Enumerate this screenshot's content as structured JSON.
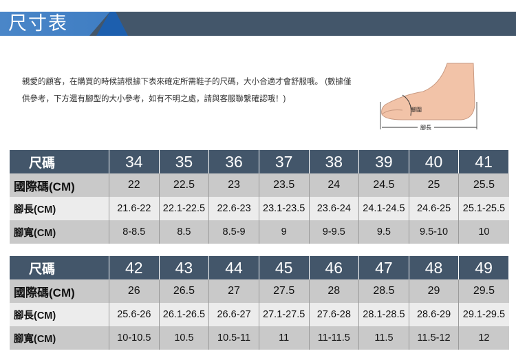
{
  "header": {
    "title": "尺寸表"
  },
  "intro": "親愛的顧客，在購買的時候請根據下表來確定所需鞋子的尺碼，大小合適才會舒服哦。 (數據僅供參考，下方還有腳型的大小參考，如有不明之處，請與客服聯繫確認哦！)",
  "foot_image": {
    "girth_label": "腳圍",
    "length_label": "腳長"
  },
  "tables": [
    {
      "rows": [
        {
          "label": "尺碼",
          "cells": [
            "34",
            "35",
            "36",
            "37",
            "38",
            "39",
            "40",
            "41"
          ]
        },
        {
          "label": "國際碼(CM)",
          "cells": [
            "22",
            "22.5",
            "23",
            "23.5",
            "24",
            "24.5",
            "25",
            "25.5"
          ]
        },
        {
          "label": "腳長(CM)",
          "cells": [
            "21.6-22",
            "22.1-22.5",
            "22.6-23",
            "23.1-23.5",
            "23.6-24",
            "24.1-24.5",
            "24.6-25",
            "25.1-25.5"
          ]
        },
        {
          "label": "腳寬(CM)",
          "cells": [
            "8-8.5",
            "8.5",
            "8.5-9",
            "9",
            "9-9.5",
            "9.5",
            "9.5-10",
            "10"
          ]
        }
      ]
    },
    {
      "rows": [
        {
          "label": "尺碼",
          "cells": [
            "42",
            "43",
            "44",
            "45",
            "46",
            "47",
            "48",
            "49"
          ]
        },
        {
          "label": "國際碼(CM)",
          "cells": [
            "26",
            "26.5",
            "27",
            "27.5",
            "28",
            "28.5",
            "29",
            "29.5"
          ]
        },
        {
          "label": "腳長(CM)",
          "cells": [
            "25.6-26",
            "26.1-26.5",
            "26.6-27",
            "27.1-27.5",
            "27.6-28",
            "28.1-28.5",
            "28.6-29",
            "29.1-29.5"
          ]
        },
        {
          "label": "腳寬(CM)",
          "cells": [
            "10-10.5",
            "10.5",
            "10.5-11",
            "11",
            "11-11.5",
            "11.5",
            "11.5-12",
            "12"
          ]
        }
      ]
    }
  ],
  "colors": {
    "header_dark": "#43566a",
    "header_blue": "#4a86c8",
    "row_gray": "#c9c9c9",
    "row_light": "#ececec"
  }
}
